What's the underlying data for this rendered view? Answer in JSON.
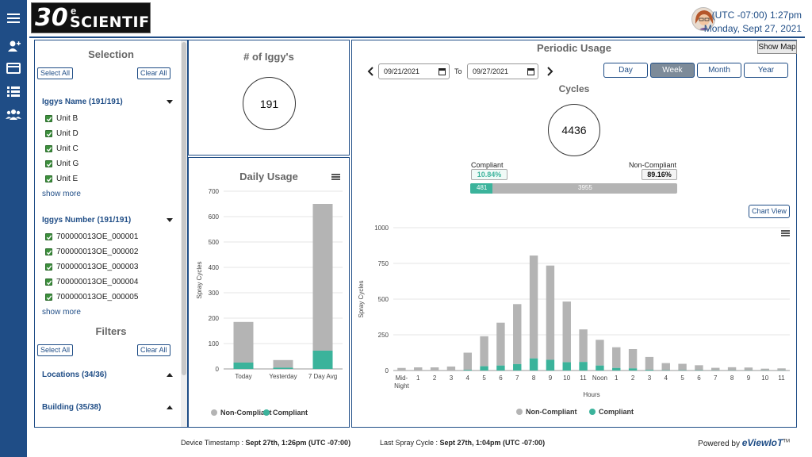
{
  "header": {
    "logo_number": "30",
    "logo_super": "e",
    "logo_text": "SCIENTIFIC",
    "logo_tm": "TM",
    "timezone_time": "(UTC -07:00) 1:27pm",
    "date": "Monday, Sept 27, 2021"
  },
  "nav": {
    "icons": [
      "menu-icon",
      "add-user-icon",
      "card-icon",
      "list-icon",
      "users-icon"
    ]
  },
  "selection": {
    "title": "Selection",
    "select_all": "Select All",
    "clear_all": "Clear All",
    "name_group": {
      "label": "Iggys Name (191/191)",
      "items": [
        "Unit B",
        "Unit D",
        "Unit C",
        "Unit G",
        "Unit E"
      ],
      "show_more": "show more"
    },
    "number_group": {
      "label": "Iggys Number (191/191)",
      "items": [
        "700000013OE_000001",
        "700000013OE_000002",
        "700000013OE_000003",
        "700000013OE_000004",
        "700000013OE_000005"
      ],
      "show_more": "show more"
    },
    "filters": {
      "title": "Filters",
      "select_all": "Select All",
      "clear_all": "Clear All",
      "locations": "Locations (34/36)",
      "building": "Building (35/38)"
    }
  },
  "iggy_count": {
    "title": "# of Iggy's",
    "value": "191"
  },
  "daily_usage": {
    "title": "Daily Usage",
    "ylabel": "Spray Cycles",
    "legend_noncompliant": "Non-Compliant",
    "legend_compliant": "Compliant"
  },
  "periodic": {
    "title": "Periodic Usage",
    "show_map": "Show Map",
    "from_date": "09/21/2021",
    "to_label": "To",
    "to_date": "09/27/2021",
    "periods": [
      "Day",
      "Week",
      "Month",
      "Year"
    ],
    "active_period": "Week",
    "cycles_title": "Cycles",
    "cycles_value": "4436",
    "compliant_label": "Compliant",
    "compliant_pct": "10.84%",
    "noncompliant_label": "Non-Compliant",
    "noncompliant_pct": "89.16%",
    "compliant_count": "481",
    "noncompliant_count": "3955",
    "compliant_fraction": 0.1084,
    "chart_view": "Chart View",
    "ylabel": "Spray Cycles",
    "xlabel": "Hours",
    "legend_noncompliant": "Non-Compliant",
    "legend_compliant": "Compliant"
  },
  "colors": {
    "noncompliant": "#b4b4b4",
    "compliant": "#3bb39b",
    "brand": "#1f4d86"
  },
  "footer": {
    "device_label": "Device Timestamp : ",
    "device_value": "Sept 27th, 1:26pm (UTC -07:00)",
    "spray_label": "Last Spray Cycle : ",
    "spray_value": "Sept 27th, 1:04pm (UTC -07:00)",
    "powered_by": "Powered by",
    "brand": "eViewIoT",
    "brand_tm": "TM"
  },
  "chart_data": [
    {
      "type": "bar",
      "title": "Daily Usage",
      "ylabel": "Spray Cycles",
      "ylim": [
        0,
        700
      ],
      "yticks": [
        0,
        100,
        200,
        300,
        400,
        500,
        600,
        700
      ],
      "categories": [
        "Today",
        "Yesterday",
        "7 Day Avg"
      ],
      "stacked": true,
      "series": [
        {
          "name": "Compliant",
          "values": [
            25,
            5,
            72
          ]
        },
        {
          "name": "Non-Compliant",
          "values": [
            160,
            30,
            578
          ]
        }
      ]
    },
    {
      "type": "bar",
      "ylabel": "Spray Cycles",
      "xlabel": "Hours",
      "ylim": [
        0,
        1000
      ],
      "yticks": [
        0,
        250,
        500,
        750,
        1000
      ],
      "categories": [
        "Mid-Night",
        "1",
        "2",
        "3",
        "4",
        "5",
        "6",
        "7",
        "8",
        "9",
        "10",
        "11",
        "Noon",
        "1",
        "2",
        "3",
        "4",
        "5",
        "6",
        "7",
        "8",
        "9",
        "10",
        "11"
      ],
      "stacked": true,
      "series": [
        {
          "name": "Compliant",
          "values": [
            0,
            0,
            0,
            0,
            5,
            30,
            35,
            45,
            85,
            75,
            58,
            60,
            35,
            18,
            15,
            5,
            2,
            2,
            2,
            1,
            1,
            1,
            1,
            1
          ]
        },
        {
          "name": "Non-Compliant",
          "values": [
            18,
            22,
            22,
            28,
            120,
            210,
            300,
            420,
            720,
            660,
            425,
            228,
            180,
            145,
            135,
            90,
            50,
            45,
            35,
            18,
            22,
            20,
            12,
            14
          ]
        }
      ]
    }
  ]
}
